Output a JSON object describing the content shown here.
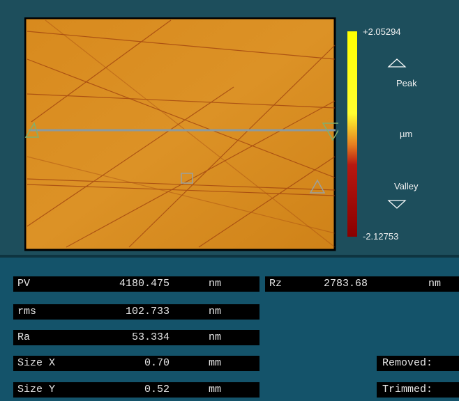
{
  "colorbar": {
    "max": "+2.05294",
    "peak": "Peak",
    "unit": "µm",
    "valley": "Valley",
    "min": "-2.12753"
  },
  "results": [
    {
      "label": "PV",
      "value": "4180.475",
      "unit": "nm"
    },
    {
      "label": "rms",
      "value": "102.733",
      "unit": "nm"
    },
    {
      "label": "Ra",
      "value": "53.334",
      "unit": "nm"
    },
    {
      "label": "Size X",
      "value": "0.70",
      "unit": "mm"
    },
    {
      "label": "Size Y",
      "value": "0.52",
      "unit": "mm"
    }
  ],
  "rz": {
    "label": "Rz",
    "value": "2783.68",
    "unit": "nm"
  },
  "status": [
    "Removed:",
    "Trimmed:"
  ]
}
